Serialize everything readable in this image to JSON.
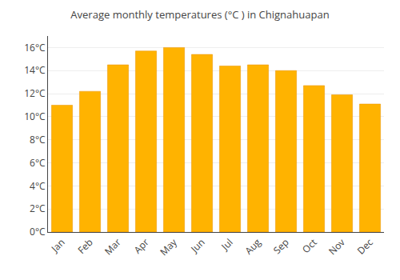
{
  "chart_data": {
    "type": "bar",
    "title": "Average monthly temperatures (°C ) in Chignahuapan",
    "categories": [
      "Jan",
      "Feb",
      "Mar",
      "Apr",
      "May",
      "Jun",
      "Jul",
      "Aug",
      "Sep",
      "Oct",
      "Nov",
      "Dec"
    ],
    "values": [
      11.0,
      12.2,
      14.5,
      15.7,
      16.0,
      15.4,
      14.4,
      14.5,
      14.0,
      12.7,
      11.9,
      11.1
    ],
    "color": "#FFB300",
    "ylim": [
      0,
      17
    ],
    "yticks": [
      {
        "value": 0,
        "label": "0°C"
      },
      {
        "value": 2,
        "label": "2°C"
      },
      {
        "value": 4,
        "label": "4°C"
      },
      {
        "value": 6,
        "label": "6°C"
      },
      {
        "value": 8,
        "label": "8°C"
      },
      {
        "value": 10,
        "label": "10°C"
      },
      {
        "value": 12,
        "label": "12°C"
      },
      {
        "value": 14,
        "label": "14°C"
      },
      {
        "value": 16,
        "label": "16°C"
      }
    ],
    "grid": true
  }
}
